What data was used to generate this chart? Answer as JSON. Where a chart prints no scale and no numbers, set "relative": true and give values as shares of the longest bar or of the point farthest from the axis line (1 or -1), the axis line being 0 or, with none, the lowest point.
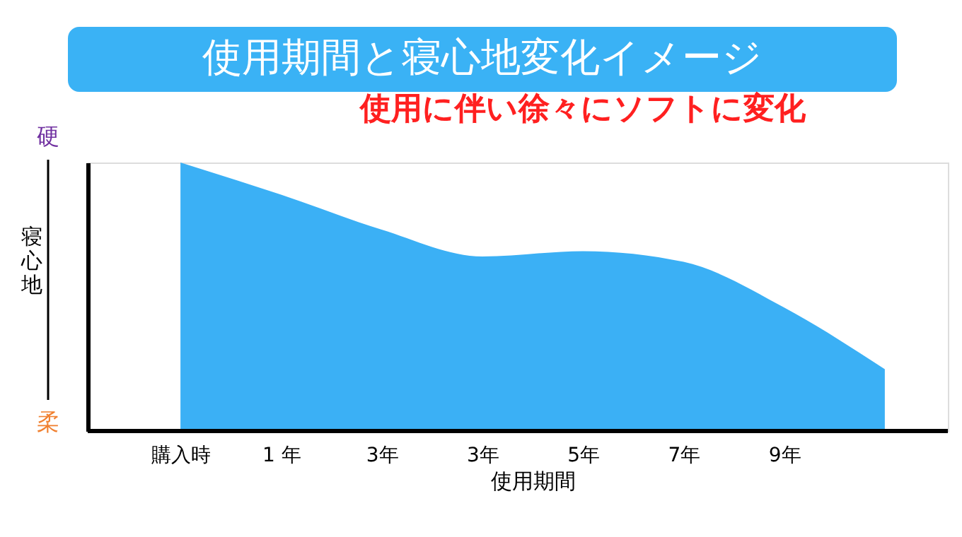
{
  "chart_data": {
    "type": "area",
    "title": "使用期間と寝心地変化イメージ",
    "xlabel": "使用期間",
    "ylabel": "寝心地",
    "categories": [
      "購入時",
      "1 年",
      "3年",
      "3年",
      "5年",
      "7年",
      "9年",
      null
    ],
    "series": [
      {
        "color": "#3bb0f5",
        "values": [
          1,
          0.88,
          0.75,
          0.65,
          0.67,
          0.63,
          0.46,
          0.23
        ]
      }
    ],
    "relative": true,
    "grid": false,
    "annotations": [
      "使用に伴い徐々にソフトに変化",
      "硬",
      "柔"
    ]
  }
}
